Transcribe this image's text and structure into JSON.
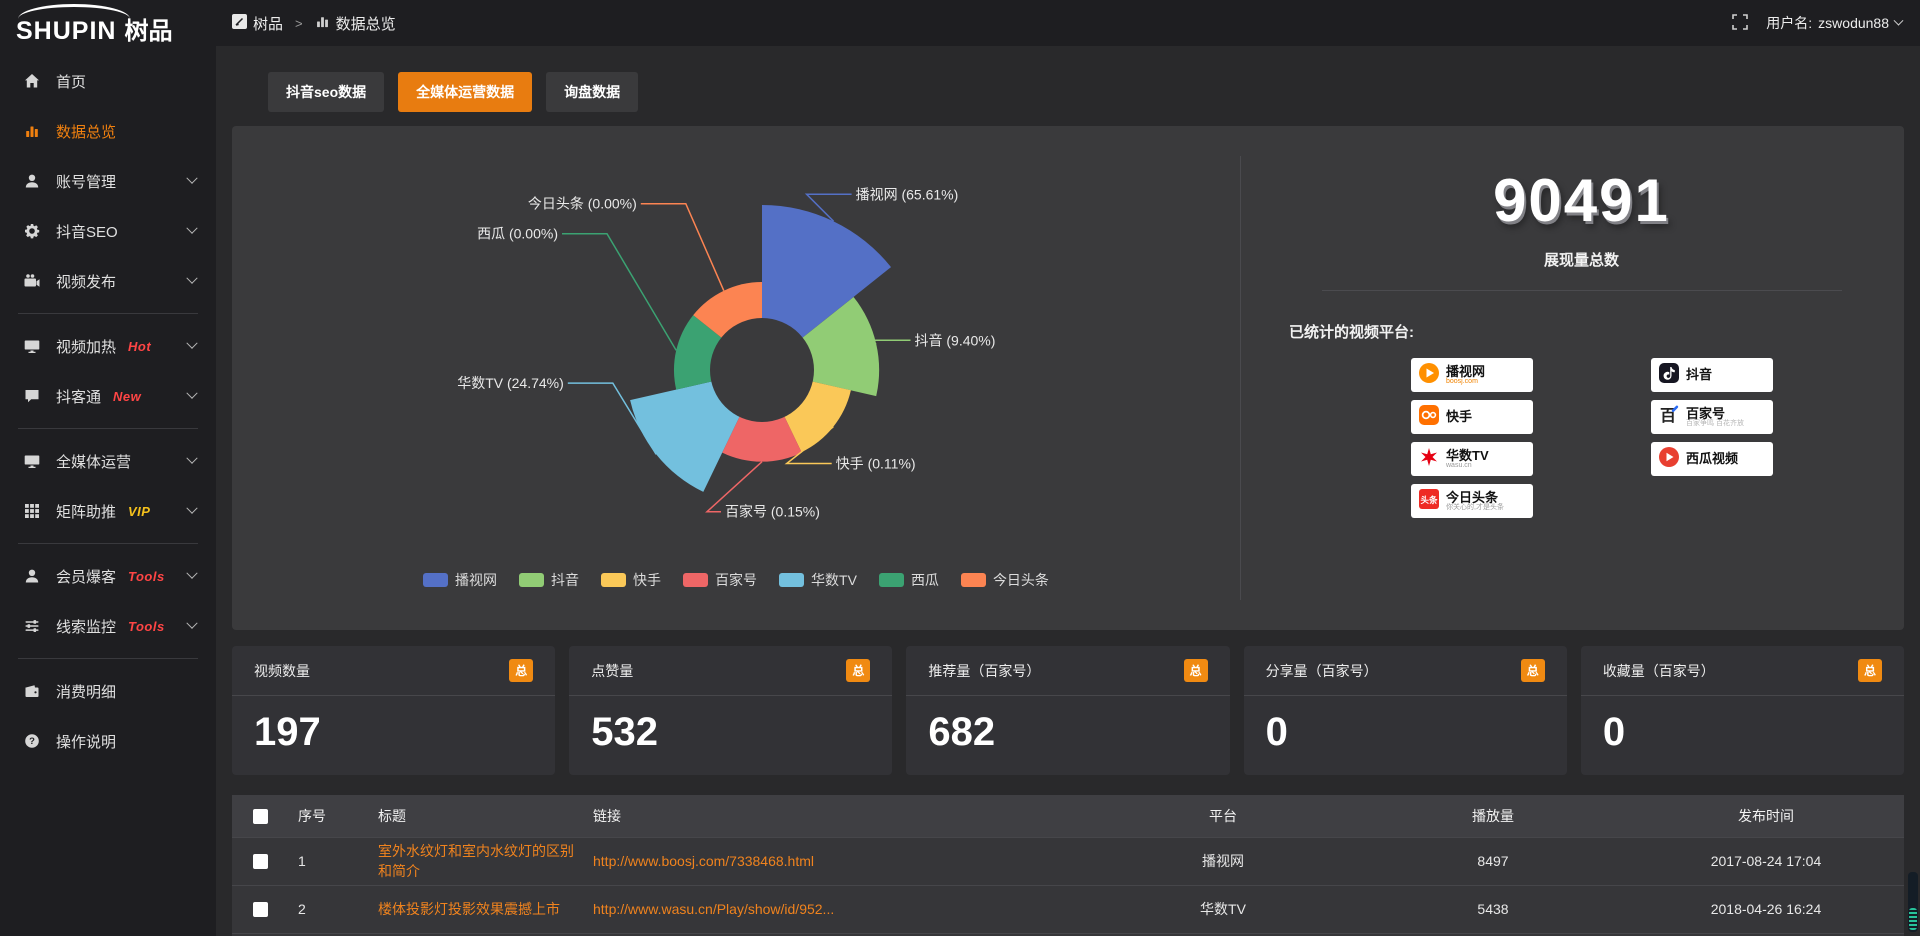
{
  "colors": {
    "accent": "#e87c10",
    "badge": "#f08a12",
    "link": "#f0831e",
    "hot": "#ff4545",
    "vip": "#f6c21c"
  },
  "header": {
    "logo_en": "SHUPIN",
    "logo_cn": "树品",
    "breadcrumb_root": "树品",
    "breadcrumb_sep": ">",
    "breadcrumb_current": "数据总览",
    "username_label": "用户名:",
    "username": "zswodun88"
  },
  "sidebar": {
    "items": [
      {
        "key": "home",
        "label": "首页",
        "icon": "home"
      },
      {
        "key": "data-overview",
        "label": "数据总览",
        "icon": "bars",
        "active": true
      },
      {
        "key": "account-manage",
        "label": "账号管理",
        "icon": "user",
        "chevron": true
      },
      {
        "key": "douyin-seo",
        "label": "抖音SEO",
        "icon": "gear",
        "chevron": true
      },
      {
        "key": "video-publish",
        "label": "视频发布",
        "icon": "clapper",
        "chevron": true
      },
      {
        "divider": true
      },
      {
        "key": "video-heat",
        "label": "视频加热",
        "icon": "monitor",
        "badge": "Hot",
        "badge_color": "red",
        "chevron": true
      },
      {
        "key": "douketong",
        "label": "抖客通",
        "icon": "chat",
        "badge": "New",
        "badge_color": "red",
        "chevron": true
      },
      {
        "divider": true
      },
      {
        "key": "media-ops",
        "label": "全媒体运营",
        "icon": "monitor",
        "chevron": true
      },
      {
        "key": "matrix-boost",
        "label": "矩阵助推",
        "icon": "grid",
        "badge": "VIP",
        "badge_color": "yellow",
        "chevron": true
      },
      {
        "divider": true
      },
      {
        "key": "member-burst",
        "label": "会员爆客",
        "icon": "user",
        "badge": "Tools",
        "badge_color": "red",
        "chevron": true
      },
      {
        "key": "lead-monitor",
        "label": "线索监控",
        "icon": "sliders",
        "badge": "Tools",
        "badge_color": "red",
        "chevron": true
      },
      {
        "divider": true
      },
      {
        "key": "expense-detail",
        "label": "消费明细",
        "icon": "wallet"
      },
      {
        "key": "help",
        "label": "操作说明",
        "icon": "question"
      }
    ]
  },
  "tabs": [
    {
      "key": "douyin-seo-data",
      "label": "抖音seo数据",
      "active": false
    },
    {
      "key": "media-ops-data",
      "label": "全媒体运营数据",
      "active": true
    },
    {
      "key": "inquiry-data",
      "label": "询盘数据",
      "active": false
    }
  ],
  "chart_data": {
    "type": "pie",
    "style": "nightingale-rose",
    "title": "",
    "legend_position": "bottom",
    "series": [
      {
        "name": "播视网",
        "percent": "65.61",
        "color": "#5470c6"
      },
      {
        "name": "抖音",
        "percent": "9.40",
        "color": "#91cc75"
      },
      {
        "name": "快手",
        "percent": "0.11",
        "color": "#fac858"
      },
      {
        "name": "百家号",
        "percent": "0.15",
        "color": "#ee6666"
      },
      {
        "name": "华数TV",
        "percent": "24.74",
        "color": "#73c0de"
      },
      {
        "name": "西瓜",
        "percent": "0.00",
        "color": "#3ba272"
      },
      {
        "name": "今日头条",
        "percent": "0.00",
        "color": "#fc8452"
      }
    ]
  },
  "summary": {
    "total": "90491",
    "total_label": "展现量总数",
    "platforms_label": "已统计的视频平台:",
    "platform_columns": [
      [
        {
          "icon": "boosj",
          "name": "播视网",
          "sub": "boosj.com",
          "sub_color": "#f08300"
        },
        {
          "icon": "kuaishou",
          "name": "快手",
          "sub": "",
          "sub_color": ""
        },
        {
          "icon": "wasu",
          "name": "华数TV",
          "sub": "wasu.cn",
          "sub_color": "#999999"
        },
        {
          "icon": "toutiao",
          "name": "今日头条",
          "sub": "你关心的,才是头条",
          "sub_color": "#9c9c9c"
        }
      ],
      [
        {
          "icon": "douyin",
          "name": "抖音",
          "sub": "",
          "sub_color": ""
        },
        {
          "icon": "baijiahao",
          "name": "百家号",
          "sub": "百家争鸣 百花齐放",
          "sub_color": "#b5b5b5"
        },
        {
          "icon": "xigua",
          "name": "西瓜视频",
          "sub": "",
          "sub_color": ""
        }
      ]
    ]
  },
  "stat_cards": [
    {
      "title": "视频数量",
      "badge": "总",
      "value": "197"
    },
    {
      "title": "点赞量",
      "badge": "总",
      "value": "532"
    },
    {
      "title": "推荐量（百家号）",
      "badge": "总",
      "value": "682"
    },
    {
      "title": "分享量（百家号）",
      "badge": "总",
      "value": "0"
    },
    {
      "title": "收藏量（百家号）",
      "badge": "总",
      "value": "0"
    }
  ],
  "table": {
    "headers": [
      "序号",
      "标题",
      "链接",
      "平台",
      "播放量",
      "发布时间"
    ],
    "rows": [
      {
        "no": "1",
        "title": "室外水纹灯和室内水纹灯的区别和简介",
        "link": "http://www.boosj.com/7338468.html",
        "platform": "播视网",
        "views": "8497",
        "time": "2017-08-24 17:04"
      },
      {
        "no": "2",
        "title": "楼体投影灯投影效果震撼上市",
        "link": "http://www.wasu.cn/Play/show/id/952...",
        "platform": "华数TV",
        "views": "5438",
        "time": "2018-04-26 16:24"
      },
      {
        "no": "",
        "title": "",
        "link": "",
        "platform": "",
        "views": "",
        "time": "",
        "partial": true
      }
    ]
  }
}
